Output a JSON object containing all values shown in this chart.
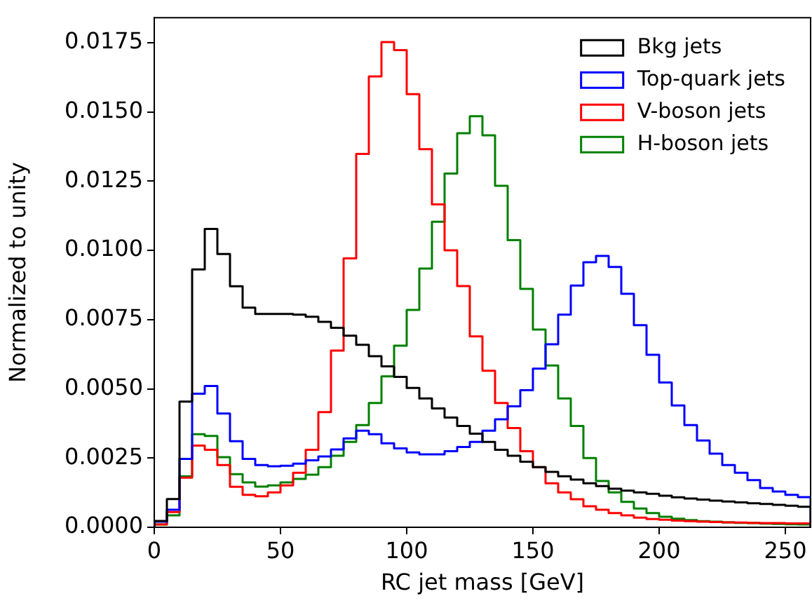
{
  "chart_data": {
    "type": "histogram",
    "xlabel": "RC jet mass [GeV]",
    "ylabel": "Normalized to unity",
    "bins": [
      0,
      5,
      10,
      15,
      20,
      25,
      30,
      35,
      40,
      45,
      50,
      55,
      60,
      65,
      70,
      75,
      80,
      85,
      90,
      95,
      100,
      105,
      110,
      115,
      120,
      125,
      130,
      135,
      140,
      145,
      150,
      155,
      160,
      165,
      170,
      175,
      180,
      185,
      190,
      195,
      200,
      205,
      210,
      215,
      220,
      225,
      230,
      235,
      240,
      245,
      250,
      255,
      260
    ],
    "series": [
      {
        "name": "Bkg jets",
        "color": "#000000",
        "values": [
          0.00023,
          0.00102,
          0.00454,
          0.00931,
          0.01077,
          0.00987,
          0.0087,
          0.00793,
          0.0077,
          0.0077,
          0.0077,
          0.00768,
          0.0076,
          0.00742,
          0.0072,
          0.00692,
          0.00659,
          0.00618,
          0.00581,
          0.00543,
          0.00503,
          0.00465,
          0.00429,
          0.00396,
          0.00366,
          0.00338,
          0.00308,
          0.0028,
          0.00258,
          0.00237,
          0.00217,
          0.002,
          0.00184,
          0.00172,
          0.00159,
          0.00149,
          0.00139,
          0.00132,
          0.00126,
          0.00121,
          0.00114,
          0.00108,
          0.00104,
          0.001,
          0.00096,
          0.00093,
          0.0009,
          0.00087,
          0.00084,
          0.00081,
          0.00078,
          0.00074
        ]
      },
      {
        "name": "Top-quark jets",
        "color": "#0000ff",
        "values": [
          0.0002,
          0.00063,
          0.00247,
          0.00482,
          0.0051,
          0.00411,
          0.00311,
          0.00247,
          0.00225,
          0.0022,
          0.00222,
          0.0023,
          0.00242,
          0.00256,
          0.00281,
          0.00321,
          0.00349,
          0.00336,
          0.00303,
          0.00285,
          0.0027,
          0.00263,
          0.00263,
          0.00275,
          0.0029,
          0.00308,
          0.00349,
          0.0039,
          0.00437,
          0.00495,
          0.00573,
          0.00661,
          0.00768,
          0.00873,
          0.00957,
          0.0098,
          0.0094,
          0.00843,
          0.0073,
          0.00623,
          0.00523,
          0.0044,
          0.00369,
          0.00313,
          0.00266,
          0.00225,
          0.00197,
          0.0017,
          0.00142,
          0.00129,
          0.00117,
          0.00109
        ]
      },
      {
        "name": "V-boson jets",
        "color": "#ff0000",
        "values": [
          0.0001,
          0.00055,
          0.00179,
          0.00295,
          0.0028,
          0.00225,
          0.00146,
          0.00117,
          0.00112,
          0.00126,
          0.00151,
          0.00197,
          0.0028,
          0.00416,
          0.00638,
          0.00971,
          0.01348,
          0.01628,
          0.01752,
          0.01723,
          0.01564,
          0.01365,
          0.01166,
          0.01,
          0.00871,
          0.00689,
          0.00565,
          0.00449,
          0.00358,
          0.00275,
          0.00217,
          0.00159,
          0.00126,
          0.00101,
          0.00076,
          0.00063,
          0.00051,
          0.00043,
          0.00035,
          0.0003,
          0.00027,
          0.00024,
          0.00022,
          0.0002,
          0.00019,
          0.00018,
          0.00017,
          0.00016,
          0.00015,
          0.00015,
          0.00014,
          0.00014
        ]
      },
      {
        "name": "H-boson jets",
        "color": "#008000",
        "values": [
          0.0001,
          0.00043,
          0.00184,
          0.00336,
          0.0033,
          0.00253,
          0.00192,
          0.00162,
          0.00147,
          0.00151,
          0.00162,
          0.00175,
          0.0019,
          0.00217,
          0.00258,
          0.00308,
          0.00369,
          0.00449,
          0.00545,
          0.00656,
          0.00785,
          0.00934,
          0.01103,
          0.01277,
          0.01423,
          0.01484,
          0.01415,
          0.01233,
          0.01037,
          0.00861,
          0.00714,
          0.00584,
          0.00465,
          0.00366,
          0.0025,
          0.00167,
          0.00126,
          0.00092,
          0.00068,
          0.00051,
          0.00038,
          0.00031,
          0.00026,
          0.00022,
          0.0002,
          0.00018,
          0.00016,
          0.00015,
          0.00013,
          0.00012,
          0.00011,
          0.0001
        ]
      }
    ],
    "xlim": [
      0,
      260
    ],
    "xticks": [
      0,
      50,
      100,
      150,
      200,
      250
    ],
    "ylim": [
      0,
      0.0184
    ],
    "yticks": [
      {
        "value": 0,
        "label": "0.0000"
      },
      {
        "value": 0.0025,
        "label": "0.0025"
      },
      {
        "value": 0.005,
        "label": "0.0050"
      },
      {
        "value": 0.0075,
        "label": "0.0075"
      },
      {
        "value": 0.01,
        "label": "0.0100"
      },
      {
        "value": 0.0125,
        "label": "0.0125"
      },
      {
        "value": 0.015,
        "label": "0.0150"
      },
      {
        "value": 0.0175,
        "label": "0.0175"
      }
    ],
    "grid": false,
    "legend": "top right"
  }
}
